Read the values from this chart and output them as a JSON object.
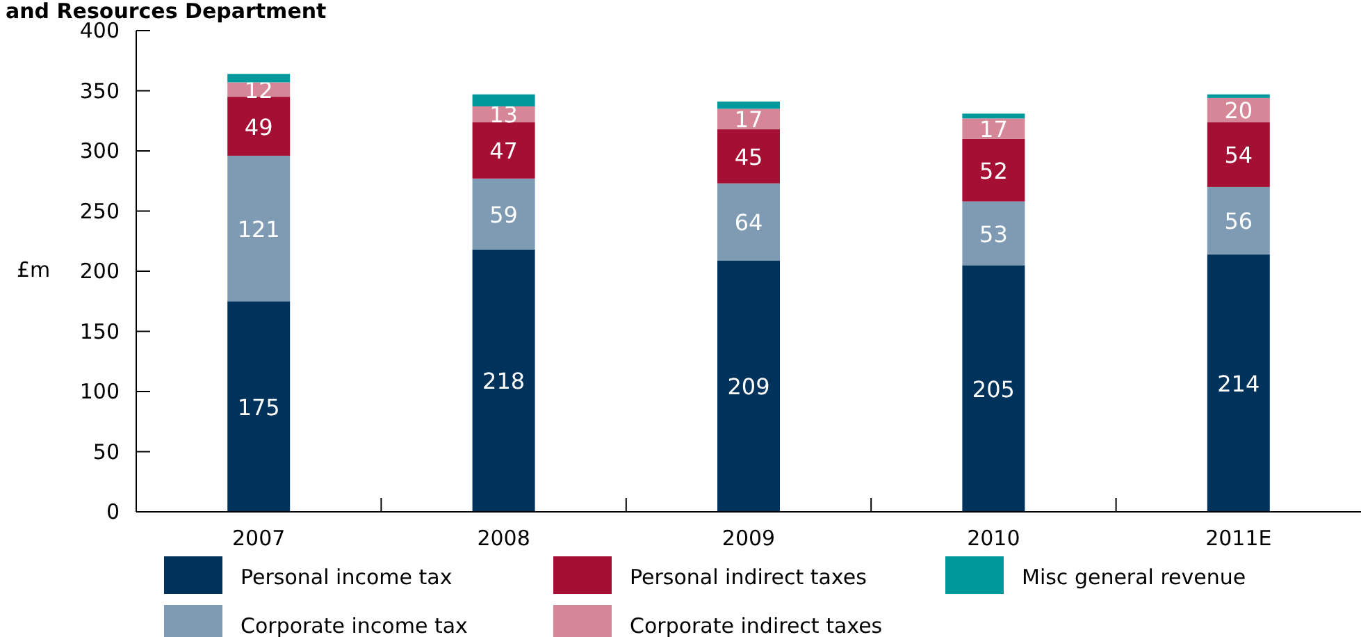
{
  "chart_data": {
    "type": "bar",
    "title": "and Resources Department",
    "ylabel": "£m",
    "stacked": true,
    "categories": [
      "2007",
      "2008",
      "2009",
      "2010",
      "2011E"
    ],
    "ylim": [
      0,
      400
    ],
    "yticks": [
      0,
      50,
      100,
      150,
      200,
      250,
      300,
      350,
      400
    ],
    "grid": false,
    "legend": "bottom",
    "series": [
      {
        "name": "Personal income tax",
        "color": "#00335b",
        "values": [
          175,
          218,
          209,
          205,
          214
        ],
        "value_labels": [
          "175",
          "218",
          "209",
          "205",
          "214"
        ]
      },
      {
        "name": "Corporate income tax",
        "color": "#7f9bb3",
        "values": [
          121,
          59,
          64,
          53,
          56
        ],
        "value_labels": [
          "121",
          "59",
          "64",
          "53",
          "56"
        ]
      },
      {
        "name": "Personal indirect taxes",
        "color": "#a50f34",
        "values": [
          49,
          47,
          45,
          52,
          54
        ],
        "value_labels": [
          "49",
          "47",
          "45",
          "52",
          "54"
        ]
      },
      {
        "name": "Corporate indirect taxes",
        "color": "#d58797",
        "values": [
          12,
          13,
          17,
          17,
          20
        ],
        "value_labels": [
          "12",
          "13",
          "17",
          "17",
          "20"
        ]
      },
      {
        "name": "Misc general revenue",
        "color": "#009a9c",
        "values": [
          7,
          10,
          6,
          4,
          3
        ]
      }
    ]
  }
}
